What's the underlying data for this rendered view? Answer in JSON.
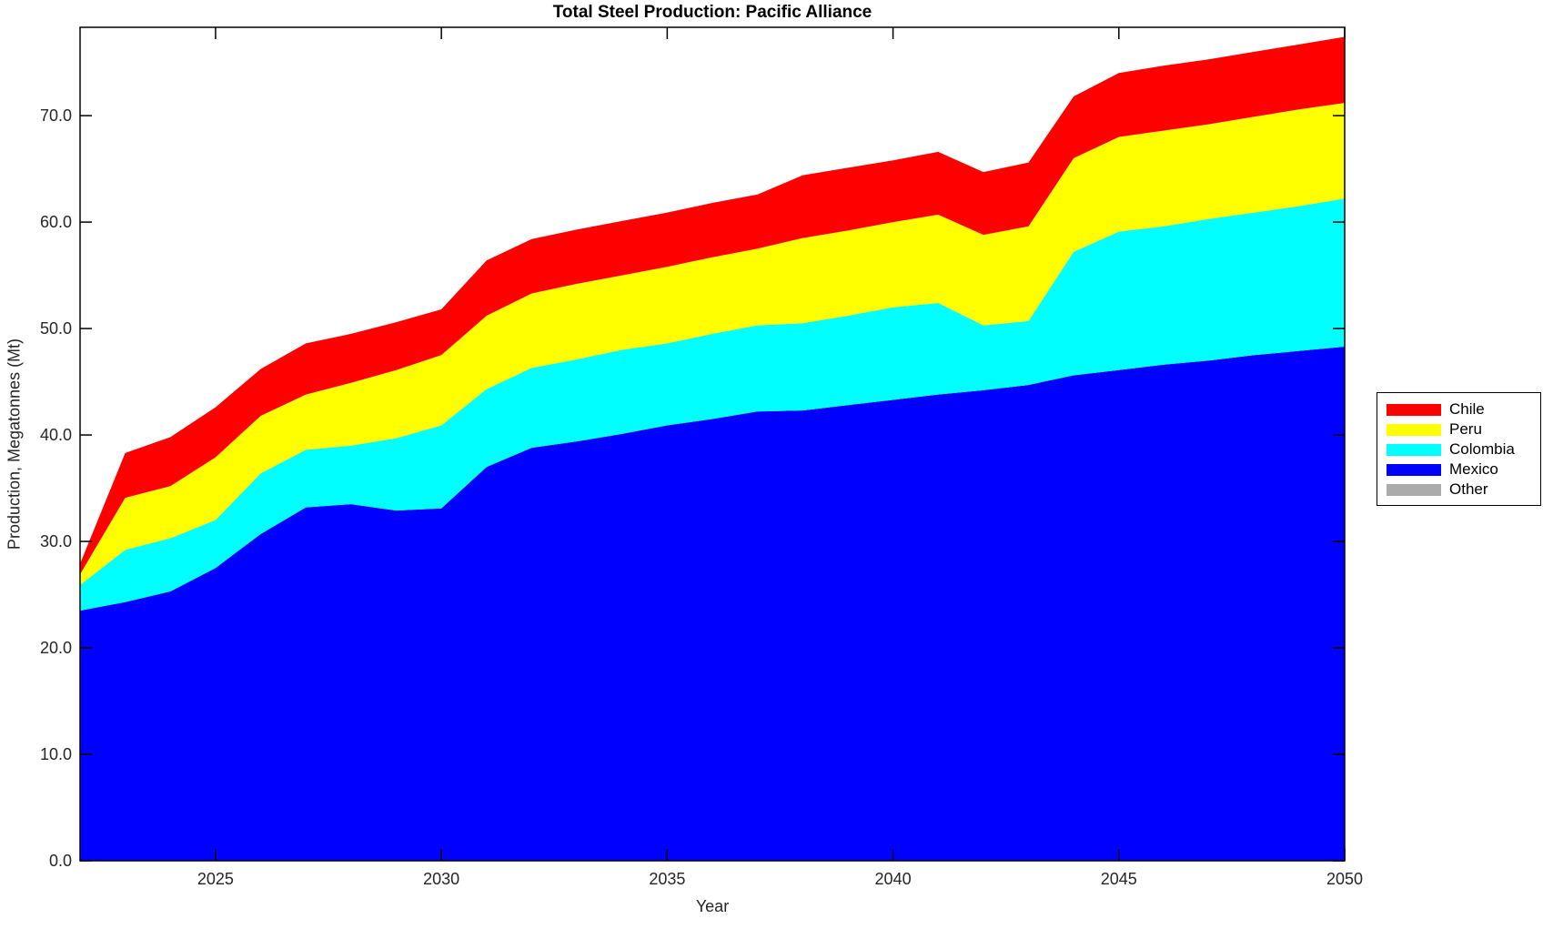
{
  "title": "Total Steel Production: Pacific Alliance",
  "chart_data": {
    "type": "area",
    "stacked": true,
    "title": "Total Steel Production: Pacific Alliance",
    "xlabel": "Year",
    "ylabel": "Production, Megatonnes (Mt)",
    "xlim": [
      2022,
      2050
    ],
    "ylim": [
      0,
      78.3
    ],
    "x_ticks": [
      2025,
      2030,
      2035,
      2040,
      2045,
      2050
    ],
    "y_ticks": [
      0,
      10,
      20,
      30,
      40,
      50,
      60,
      70
    ],
    "y_tick_labels": [
      "0.0",
      "10.0",
      "20.0",
      "30.0",
      "40.0",
      "50.0",
      "60.0",
      "70.0"
    ],
    "grid": false,
    "legend_position": "outside-right",
    "stack_order_bottom_to_top": [
      "Other",
      "Mexico",
      "Colombia",
      "Peru",
      "Chile"
    ],
    "x": [
      2022,
      2023,
      2024,
      2025,
      2026,
      2027,
      2028,
      2029,
      2030,
      2031,
      2032,
      2033,
      2034,
      2035,
      2036,
      2037,
      2038,
      2039,
      2040,
      2041,
      2042,
      2043,
      2044,
      2045,
      2046,
      2047,
      2048,
      2049,
      2050
    ],
    "series": [
      {
        "name": "Chile",
        "color": "#FF0000",
        "values": [
          1.0,
          4.2,
          4.6,
          4.7,
          4.4,
          4.8,
          4.6,
          4.5,
          4.3,
          5.2,
          5.1,
          5.1,
          5.1,
          5.1,
          5.1,
          5.1,
          5.9,
          5.9,
          5.8,
          5.9,
          5.9,
          6.0,
          5.8,
          6.0,
          6.1,
          6.1,
          6.1,
          6.1,
          6.2
        ]
      },
      {
        "name": "Peru",
        "color": "#FFFF00",
        "values": [
          1.0,
          4.9,
          4.9,
          5.9,
          5.4,
          5.2,
          5.9,
          6.4,
          6.6,
          6.9,
          7.0,
          7.1,
          7.0,
          7.2,
          7.2,
          7.2,
          8.0,
          8.0,
          8.0,
          8.3,
          8.5,
          8.9,
          8.8,
          8.9,
          9.0,
          8.9,
          9.0,
          9.1,
          9.0
        ]
      },
      {
        "name": "Colombia",
        "color": "#00FFFF",
        "values": [
          2.4,
          4.9,
          5.0,
          4.5,
          5.7,
          5.4,
          5.5,
          6.8,
          7.8,
          7.3,
          7.5,
          7.7,
          7.9,
          7.7,
          8.0,
          8.1,
          8.2,
          8.4,
          8.7,
          8.6,
          6.1,
          6.0,
          11.6,
          13.0,
          13.0,
          13.3,
          13.4,
          13.6,
          13.9
        ]
      },
      {
        "name": "Mexico",
        "color": "#0000FF",
        "values": [
          23.5,
          24.3,
          25.3,
          27.5,
          30.7,
          33.2,
          33.5,
          32.9,
          33.1,
          37.0,
          38.8,
          39.4,
          40.1,
          40.9,
          41.5,
          42.2,
          42.3,
          42.8,
          43.3,
          43.8,
          44.2,
          44.7,
          45.6,
          46.1,
          46.6,
          47.0,
          47.5,
          47.9,
          48.3
        ]
      },
      {
        "name": "Other",
        "color": "#ABABAB",
        "values": [
          0,
          0,
          0,
          0,
          0,
          0,
          0,
          0,
          0,
          0,
          0,
          0,
          0,
          0,
          0,
          0,
          0,
          0,
          0,
          0,
          0,
          0,
          0,
          0,
          0,
          0,
          0,
          0,
          0
        ]
      }
    ]
  }
}
